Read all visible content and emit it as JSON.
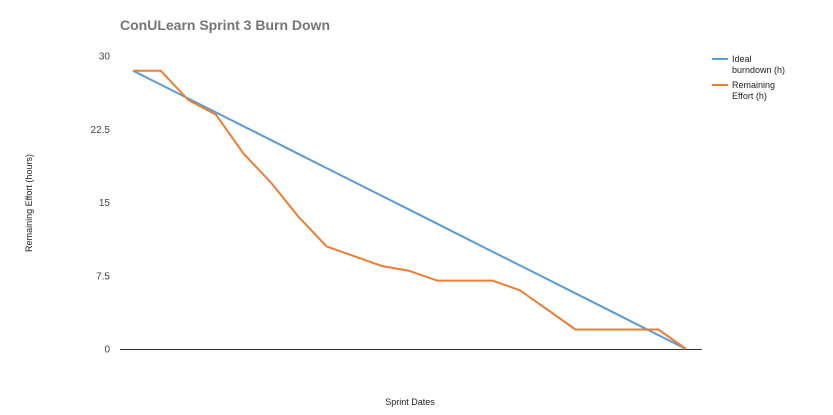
{
  "chart_data": {
    "type": "line",
    "title": "ConULearn Sprint 3 Burn Down",
    "xlabel": "Sprint Dates",
    "ylabel": "Remaining Effort (hours)",
    "ylim": [
      0,
      30
    ],
    "yticks": [
      "0",
      "7.5",
      "15",
      "22.5",
      "30"
    ],
    "ytick_values": [
      0,
      7.5,
      15,
      22.5,
      30
    ],
    "x_points": 21,
    "grid": false,
    "legend_position": "right",
    "series": [
      {
        "name": "Ideal burndown (h)",
        "name_lines": [
          "Ideal",
          "burndown (h)"
        ],
        "color": "#5b9bd5",
        "values": [
          28.5,
          27.075,
          25.65,
          24.225,
          22.8,
          21.375,
          19.95,
          18.525,
          17.1,
          15.675,
          14.25,
          12.825,
          11.4,
          9.975,
          8.55,
          7.125,
          5.7,
          4.275,
          2.85,
          1.425,
          0
        ]
      },
      {
        "name": "Remaining Effort (h)",
        "name_lines": [
          "Remaining",
          "Effort (h)"
        ],
        "color": "#ed7d31",
        "values": [
          28.5,
          28.5,
          25.5,
          24,
          20,
          17,
          13.5,
          10.5,
          9.5,
          8.5,
          8,
          7,
          7,
          7,
          6,
          4,
          2,
          2,
          2,
          2,
          0
        ]
      }
    ]
  }
}
